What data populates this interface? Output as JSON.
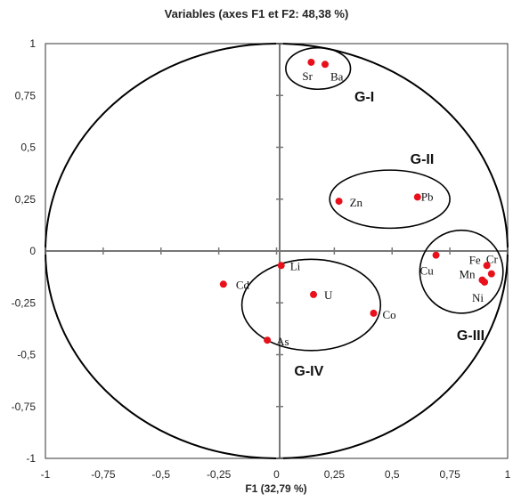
{
  "chart_data": {
    "type": "scatter",
    "title": "Variables (axes F1 et F2: 48,38 %)",
    "xlabel": "F1 (32,79 %)",
    "ylabel": "",
    "xlim": [
      -1,
      1
    ],
    "ylim": [
      -1,
      1
    ],
    "x_ticks": [
      "-1",
      "-0,75",
      "-0,5",
      "-0,25",
      "0",
      "0,25",
      "0,5",
      "0,75",
      "1"
    ],
    "y_ticks": [
      "1",
      "0,75",
      "0,5",
      "0,25",
      "0",
      "-0,25",
      "-0,5",
      "-0,75",
      "-1"
    ],
    "grid": false,
    "marker_color": "#e8101a",
    "points": [
      {
        "name": "Sr",
        "x": 0.15,
        "y": 0.91
      },
      {
        "name": "Ba",
        "x": 0.21,
        "y": 0.9
      },
      {
        "name": "Zn",
        "x": 0.27,
        "y": 0.24
      },
      {
        "name": "Pb",
        "x": 0.61,
        "y": 0.26
      },
      {
        "name": "Cu",
        "x": 0.69,
        "y": -0.02
      },
      {
        "name": "Fe",
        "x": 0.91,
        "y": -0.07
      },
      {
        "name": "Cr",
        "x": 0.93,
        "y": -0.11
      },
      {
        "name": "Mn",
        "x": 0.89,
        "y": -0.14
      },
      {
        "name": "Ni",
        "x": 0.9,
        "y": -0.15
      },
      {
        "name": "Li",
        "x": 0.02,
        "y": -0.07
      },
      {
        "name": "Cd",
        "x": -0.23,
        "y": -0.16
      },
      {
        "name": "U",
        "x": 0.16,
        "y": -0.21
      },
      {
        "name": "Co",
        "x": 0.42,
        "y": -0.3
      },
      {
        "name": "As",
        "x": -0.04,
        "y": -0.43
      }
    ],
    "groups": [
      {
        "name": "G-I",
        "center": [
          0.18,
          0.88
        ],
        "radii": [
          0.14,
          0.1
        ]
      },
      {
        "name": "G-II",
        "center": [
          0.49,
          0.25
        ],
        "radii": [
          0.26,
          0.14
        ]
      },
      {
        "name": "G-III",
        "center": [
          0.8,
          -0.1
        ],
        "radii": [
          0.18,
          0.2
        ]
      },
      {
        "name": "G-IV",
        "center": [
          0.15,
          -0.26
        ],
        "radii": [
          0.3,
          0.22
        ]
      }
    ]
  }
}
